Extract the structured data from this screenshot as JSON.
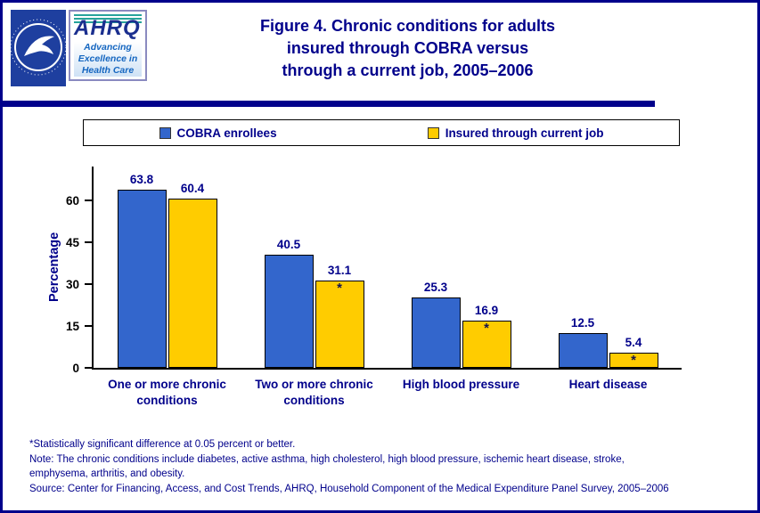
{
  "header": {
    "title_lines": [
      "Figure 4. Chronic conditions for adults",
      "insured  through COBRA versus",
      "through a current job, 2005–2006"
    ],
    "ahrq": {
      "acronym": "AHRQ",
      "tagline_lines": [
        "Advancing",
        "Excellence in",
        "Health Care"
      ]
    }
  },
  "legend": {
    "items": [
      {
        "label": "COBRA enrollees",
        "color": "#3366CC"
      },
      {
        "label": "Insured through current job",
        "color": "#FFCC00"
      }
    ]
  },
  "chart_data": {
    "type": "bar",
    "title": "Figure 4. Chronic conditions for adults insured through COBRA versus through a current job, 2005–2006",
    "categories": [
      "One or more chronic conditions",
      "Two or more chronic conditions",
      "High blood pressure",
      "Heart disease"
    ],
    "series": [
      {
        "name": "COBRA enrollees",
        "color": "#3366CC",
        "values": [
          63.8,
          40.5,
          25.3,
          12.5
        ],
        "significant": [
          false,
          false,
          false,
          false
        ]
      },
      {
        "name": "Insured through current job",
        "color": "#FFCC00",
        "values": [
          60.4,
          31.1,
          16.9,
          5.4
        ],
        "significant": [
          false,
          true,
          true,
          true
        ]
      }
    ],
    "xlabel": "",
    "ylabel": "Percentage",
    "ylim": [
      0,
      72
    ],
    "yticks": [
      0,
      15,
      30,
      45,
      60
    ],
    "grid": false,
    "legend_position": "top"
  },
  "footnotes": [
    "*Statistically significant difference at 0.05 percent or better.",
    "Note: The chronic conditions include diabetes, active asthma, high cholesterol, high blood pressure, ischemic heart disease, stroke,",
    "emphysema, arthritis, and obesity.",
    "Source: Center for Financing, Access, and Cost Trends, AHRQ, Household Component of the Medical Expenditure Panel Survey, 2005–2006"
  ],
  "colors": {
    "navy": "#00008B",
    "bar_blue": "#3366CC",
    "bar_yellow": "#FFCC00",
    "divider": "#00008B",
    "hhs_logo_blue": "#1e3f9f",
    "ahrq_teal": "#27a39b"
  }
}
